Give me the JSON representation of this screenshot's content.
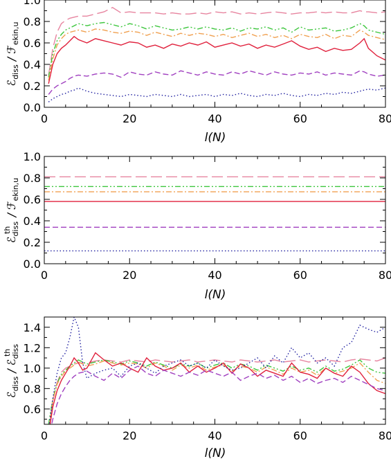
{
  "chart_data": [
    {
      "type": "line",
      "title": "",
      "xlabel": "l(N)",
      "ylabel": {
        "main": "ℰ",
        "sub": "diss",
        "sep": " / ",
        "main2": "ℱ",
        "sub2": "ekin,u"
      },
      "xlim": [
        0,
        80
      ],
      "ylim": [
        0.0,
        1.0
      ],
      "xticks": [
        "0",
        "20",
        "40",
        "60",
        "80"
      ],
      "yticks": [
        "0.0",
        "0.2",
        "0.4",
        "0.6",
        "0.8",
        "1.0"
      ],
      "grid": false,
      "x": [
        1,
        2,
        3,
        4,
        5,
        6,
        7,
        8,
        10,
        12,
        14,
        16,
        18,
        20,
        22,
        24,
        26,
        28,
        30,
        32,
        34,
        36,
        38,
        40,
        42,
        44,
        46,
        48,
        50,
        52,
        54,
        56,
        58,
        60,
        62,
        64,
        66,
        68,
        70,
        72,
        74,
        75,
        76,
        78,
        80
      ],
      "series": [
        {
          "color": "#e7849f",
          "dash": "long-dash",
          "values": [
            0.3,
            0.55,
            0.7,
            0.78,
            0.81,
            0.83,
            0.84,
            0.85,
            0.85,
            0.87,
            0.89,
            0.93,
            0.88,
            0.89,
            0.88,
            0.88,
            0.88,
            0.87,
            0.88,
            0.87,
            0.87,
            0.88,
            0.87,
            0.89,
            0.88,
            0.89,
            0.87,
            0.88,
            0.87,
            0.88,
            0.89,
            0.88,
            0.87,
            0.88,
            0.88,
            0.89,
            0.88,
            0.89,
            0.88,
            0.88,
            0.9,
            0.89,
            0.89,
            0.88,
            0.89
          ]
        },
        {
          "color": "#3cc63c",
          "dash": "dash-dot-dot",
          "values": [
            0.28,
            0.5,
            0.62,
            0.68,
            0.72,
            0.74,
            0.76,
            0.78,
            0.76,
            0.78,
            0.79,
            0.77,
            0.75,
            0.78,
            0.76,
            0.73,
            0.76,
            0.74,
            0.72,
            0.73,
            0.75,
            0.73,
            0.75,
            0.73,
            0.72,
            0.74,
            0.71,
            0.74,
            0.73,
            0.75,
            0.72,
            0.74,
            0.7,
            0.75,
            0.72,
            0.73,
            0.74,
            0.71,
            0.72,
            0.74,
            0.78,
            0.76,
            0.72,
            0.7,
            0.68
          ]
        },
        {
          "color": "#f0a050",
          "dash": "dash-dot",
          "values": [
            0.25,
            0.45,
            0.58,
            0.64,
            0.68,
            0.7,
            0.71,
            0.72,
            0.7,
            0.73,
            0.72,
            0.7,
            0.69,
            0.71,
            0.7,
            0.67,
            0.7,
            0.68,
            0.66,
            0.69,
            0.67,
            0.69,
            0.68,
            0.66,
            0.68,
            0.65,
            0.67,
            0.69,
            0.66,
            0.68,
            0.65,
            0.67,
            0.64,
            0.68,
            0.66,
            0.65,
            0.68,
            0.64,
            0.67,
            0.66,
            0.72,
            0.7,
            0.67,
            0.65,
            0.63
          ]
        },
        {
          "color": "#e0203c",
          "dash": "solid",
          "values": [
            0.22,
            0.4,
            0.5,
            0.55,
            0.58,
            0.62,
            0.66,
            0.63,
            0.6,
            0.64,
            0.62,
            0.6,
            0.58,
            0.61,
            0.6,
            0.56,
            0.58,
            0.55,
            0.59,
            0.57,
            0.6,
            0.58,
            0.61,
            0.56,
            0.58,
            0.6,
            0.57,
            0.59,
            0.55,
            0.58,
            0.56,
            0.59,
            0.62,
            0.57,
            0.54,
            0.56,
            0.52,
            0.55,
            0.53,
            0.54,
            0.6,
            0.64,
            0.55,
            0.48,
            0.44
          ]
        },
        {
          "color": "#a040c0",
          "dash": "dash",
          "values": [
            0.12,
            0.17,
            0.2,
            0.22,
            0.24,
            0.27,
            0.29,
            0.3,
            0.29,
            0.31,
            0.32,
            0.31,
            0.28,
            0.33,
            0.31,
            0.3,
            0.33,
            0.31,
            0.3,
            0.34,
            0.32,
            0.3,
            0.33,
            0.31,
            0.3,
            0.33,
            0.31,
            0.34,
            0.32,
            0.3,
            0.33,
            0.31,
            0.3,
            0.32,
            0.31,
            0.33,
            0.3,
            0.32,
            0.31,
            0.3,
            0.34,
            0.33,
            0.31,
            0.29,
            0.3
          ]
        },
        {
          "color": "#2020a0",
          "dash": "dot",
          "values": [
            0.05,
            0.08,
            0.1,
            0.12,
            0.13,
            0.15,
            0.16,
            0.18,
            0.15,
            0.13,
            0.12,
            0.11,
            0.1,
            0.12,
            0.11,
            0.1,
            0.12,
            0.11,
            0.1,
            0.12,
            0.1,
            0.11,
            0.12,
            0.1,
            0.12,
            0.11,
            0.13,
            0.11,
            0.1,
            0.12,
            0.11,
            0.13,
            0.11,
            0.1,
            0.12,
            0.11,
            0.13,
            0.12,
            0.14,
            0.13,
            0.15,
            0.16,
            0.17,
            0.16,
            0.18
          ]
        }
      ]
    },
    {
      "type": "line",
      "title": "",
      "xlabel": "l(N)",
      "ylabel": {
        "main": "ℰ",
        "sup": "th",
        "sub": "diss",
        "sep": " / ",
        "main2": "ℱ",
        "sub2": "ekin,u"
      },
      "xlim": [
        0,
        80
      ],
      "ylim": [
        0.0,
        1.0
      ],
      "xticks": [
        "0",
        "20",
        "40",
        "60",
        "80"
      ],
      "yticks": [
        "0.0",
        "0.2",
        "0.4",
        "0.6",
        "0.8",
        "1.0"
      ],
      "grid": false,
      "x": [
        0,
        80
      ],
      "series": [
        {
          "color": "#e7849f",
          "dash": "long-dash",
          "values": [
            0.81,
            0.81
          ]
        },
        {
          "color": "#3cc63c",
          "dash": "dash-dot-dot",
          "values": [
            0.72,
            0.72
          ]
        },
        {
          "color": "#f0a050",
          "dash": "dash-dot",
          "values": [
            0.67,
            0.67
          ]
        },
        {
          "color": "#e0203c",
          "dash": "solid",
          "values": [
            0.58,
            0.58
          ]
        },
        {
          "color": "#a040c0",
          "dash": "dash",
          "values": [
            0.34,
            0.34
          ]
        },
        {
          "color": "#2020a0",
          "dash": "dot",
          "values": [
            0.12,
            0.12
          ]
        }
      ]
    },
    {
      "type": "line",
      "title": "",
      "xlabel": "l(N)",
      "ylabel": {
        "main": "ℰ",
        "sub": "diss",
        "sep": " / ",
        "main2": "ℰ",
        "sup2": "th",
        "sub2": "diss"
      },
      "xlim": [
        0,
        80
      ],
      "ylim": [
        0.45,
        1.5
      ],
      "xticks": [
        "0",
        "20",
        "40",
        "60",
        "80"
      ],
      "yticks": [
        "0.6",
        "0.8",
        "1.0",
        "1.2",
        "1.4"
      ],
      "grid": false,
      "x": [
        1,
        2,
        3,
        4,
        5,
        6,
        7,
        8,
        9,
        10,
        12,
        14,
        16,
        18,
        20,
        22,
        24,
        26,
        28,
        30,
        32,
        34,
        36,
        38,
        40,
        42,
        44,
        46,
        48,
        50,
        52,
        54,
        56,
        58,
        60,
        62,
        64,
        66,
        68,
        70,
        72,
        74,
        76,
        78,
        80
      ],
      "series": [
        {
          "color": "#e7849f",
          "dash": "long-dash",
          "values": [
            0.38,
            0.68,
            0.86,
            0.96,
            1.0,
            1.02,
            1.04,
            1.05,
            1.05,
            1.05,
            1.07,
            1.08,
            1.07,
            1.06,
            1.08,
            1.07,
            1.06,
            1.08,
            1.07,
            1.06,
            1.07,
            1.08,
            1.06,
            1.07,
            1.08,
            1.07,
            1.06,
            1.08,
            1.07,
            1.06,
            1.07,
            1.08,
            1.06,
            1.07,
            1.08,
            1.06,
            1.07,
            1.08,
            1.07,
            1.06,
            1.08,
            1.09,
            1.08,
            1.07,
            1.1
          ]
        },
        {
          "color": "#3cc63c",
          "dash": "dash-dot-dot",
          "values": [
            0.45,
            0.7,
            0.85,
            0.94,
            0.98,
            1.02,
            1.05,
            1.08,
            1.06,
            1.04,
            1.06,
            1.08,
            1.06,
            1.04,
            1.07,
            1.05,
            1.02,
            1.06,
            1.03,
            1.0,
            1.04,
            1.02,
            1.05,
            1.0,
            1.03,
            1.05,
            1.0,
            1.04,
            1.02,
            0.98,
            1.03,
            1.0,
            0.97,
            1.02,
            0.98,
            1.0,
            0.96,
            1.02,
            0.97,
            0.99,
            1.03,
            1.08,
            1.0,
            0.96,
            0.95
          ]
        },
        {
          "color": "#f0a050",
          "dash": "dash-dot",
          "values": [
            0.4,
            0.68,
            0.84,
            0.92,
            0.97,
            1.0,
            1.03,
            1.06,
            1.04,
            1.02,
            1.04,
            1.07,
            1.05,
            1.03,
            1.05,
            1.04,
            1.0,
            1.05,
            1.02,
            0.98,
            1.03,
            1.0,
            1.03,
            0.98,
            1.01,
            1.03,
            0.97,
            1.02,
            1.0,
            0.96,
            1.01,
            0.98,
            0.94,
            1.0,
            0.96,
            0.98,
            0.93,
            1.0,
            0.95,
            0.97,
            1.0,
            1.05,
            0.96,
            0.88,
            0.85
          ]
        },
        {
          "color": "#e0203c",
          "dash": "solid",
          "values": [
            0.35,
            0.62,
            0.78,
            0.88,
            0.95,
            1.02,
            1.1,
            1.05,
            0.98,
            1.0,
            1.15,
            1.08,
            1.02,
            1.05,
            1.0,
            0.96,
            1.1,
            1.02,
            0.98,
            1.0,
            1.05,
            0.96,
            1.02,
            0.96,
            1.0,
            1.05,
            0.95,
            1.04,
            1.0,
            0.92,
            0.98,
            0.95,
            0.92,
            1.05,
            0.96,
            0.94,
            0.9,
            1.0,
            0.95,
            0.92,
            1.02,
            0.96,
            0.85,
            0.78,
            0.75
          ]
        },
        {
          "color": "#a040c0",
          "dash": "dash",
          "values": [
            0.3,
            0.5,
            0.65,
            0.75,
            0.82,
            0.88,
            0.92,
            0.95,
            0.96,
            0.97,
            0.92,
            0.88,
            0.95,
            0.9,
            0.98,
            1.02,
            0.95,
            0.92,
            0.98,
            0.95,
            0.92,
            0.96,
            0.93,
            0.98,
            0.95,
            0.92,
            0.96,
            0.88,
            0.92,
            0.95,
            0.9,
            0.93,
            0.88,
            0.92,
            0.86,
            0.9,
            0.85,
            0.88,
            0.9,
            0.86,
            0.92,
            0.88,
            0.84,
            0.8,
            0.78
          ]
        },
        {
          "color": "#2020a0",
          "dash": "dot",
          "values": [
            0.4,
            0.7,
            0.95,
            1.1,
            1.15,
            1.3,
            1.5,
            1.4,
            1.05,
            0.9,
            0.95,
            0.98,
            1.0,
            0.92,
            1.02,
            1.05,
            1.0,
            0.95,
            1.02,
            1.05,
            1.08,
            1.02,
            1.05,
            1.0,
            1.08,
            1.02,
            0.98,
            1.0,
            1.05,
            1.1,
            1.0,
            1.12,
            1.05,
            1.2,
            1.1,
            1.15,
            1.05,
            1.1,
            1.02,
            1.2,
            1.25,
            1.42,
            1.38,
            1.35,
            1.4
          ]
        }
      ]
    }
  ]
}
